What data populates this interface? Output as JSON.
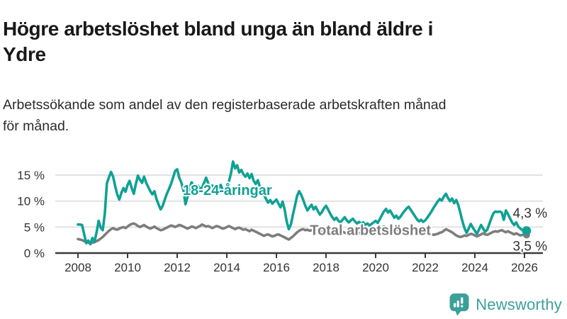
{
  "header": {
    "title_line1": "Högre arbetslöshet bland unga än bland äldre i",
    "title_line2": "Ydre",
    "subtitle_line1": "Arbetssökande som andel av den registerbaserade arbetskraften månad",
    "subtitle_line2": "för månad."
  },
  "footer": {
    "brand": "Newsworthy"
  },
  "colors": {
    "youth": "#10a195",
    "total": "#7d7d7d",
    "axis": "#3a3a3a",
    "grid": "#d8d8d8",
    "tick_label": "#333333",
    "end_label": "#333333",
    "brand": "#3d9f9a",
    "background": "#ffffff"
  },
  "chart_data": {
    "type": "line",
    "title": "Högre arbetslöshet bland unga än bland äldre i Ydre",
    "subtitle": "Arbetssökande som andel av den registerbaserade arbetskraften månad för månad.",
    "x_start": "2008-01",
    "x_end": "2026-02",
    "points_per_year": 12,
    "xticks": [
      2008,
      2010,
      2012,
      2014,
      2016,
      2018,
      2020,
      2022,
      2024,
      2026
    ],
    "ytick_values": [
      0,
      5,
      10,
      15
    ],
    "ytick_labels": [
      "0 %",
      "5 %",
      "10 %",
      "15 %"
    ],
    "ylim": [
      0,
      18.5
    ],
    "grid": "horizontal",
    "legend_position": "inline-labels",
    "series": [
      {
        "name": "18-24-åringar",
        "color": "#10a195",
        "end_label": "4,3 %",
        "end_value": 4.3,
        "values": [
          5.5,
          5.5,
          5.4,
          3.6,
          1.9,
          2.4,
          1.7,
          2.9,
          2.2,
          4.0,
          6.2,
          4.9,
          4.4,
          7.6,
          13.4,
          14.6,
          15.6,
          14.7,
          12.9,
          11.3,
          10.3,
          11.6,
          12.5,
          11.8,
          13.1,
          13.9,
          12.5,
          11.4,
          13.3,
          14.9,
          14.1,
          13.5,
          14.7,
          13.5,
          12.7,
          11.9,
          11.3,
          11.9,
          10.4,
          9.3,
          8.4,
          9.1,
          10.3,
          11.4,
          12.3,
          13.3,
          14.5,
          15.8,
          16.1,
          14.5,
          13.6,
          12.1,
          9.4,
          10.8,
          12.6,
          13.6,
          12.9,
          12.2,
          13.0,
          12.3,
          12.6,
          13.5,
          14.5,
          13.4,
          12.3,
          13.0,
          12.1,
          11.5,
          12.4,
          13.1,
          12.2,
          11.6,
          12.4,
          13.7,
          15.3,
          17.6,
          16.3,
          16.9,
          15.5,
          16.0,
          15.2,
          14.7,
          15.3,
          14.4,
          15.2,
          13.9,
          13.3,
          14.0,
          12.7,
          11.9,
          11.2,
          10.4,
          9.7,
          10.2,
          9.5,
          9.9,
          10.3,
          9.5,
          8.8,
          9.9,
          8.3,
          6.0,
          4.6,
          5.5,
          7.4,
          9.2,
          11.0,
          11.9,
          11.2,
          10.2,
          9.1,
          8.2,
          8.8,
          9.3,
          8.4,
          8.9,
          8.1,
          7.4,
          7.9,
          8.6,
          9.1,
          8.4,
          7.6,
          6.9,
          6.4,
          6.8,
          6.2,
          5.9,
          6.4,
          6.9,
          6.3,
          5.9,
          6.3,
          6.6,
          6.1,
          5.7,
          6.0,
          5.6,
          5.9,
          5.4,
          5.7,
          5.3,
          5.6,
          5.9,
          6.2,
          5.8,
          6.5,
          7.3,
          8.0,
          8.5,
          7.8,
          8.2,
          7.5,
          6.8,
          7.2,
          6.6,
          7.0,
          7.6,
          8.1,
          8.6,
          8.9,
          8.3,
          7.7,
          7.1,
          6.5,
          6.1,
          6.4,
          6.0,
          6.3,
          6.8,
          7.4,
          8.0,
          8.7,
          9.3,
          9.9,
          10.4,
          10.1,
          10.9,
          11.4,
          10.6,
          10.0,
          10.5,
          9.6,
          10.2,
          9.2,
          7.7,
          6.1,
          4.8,
          3.9,
          4.7,
          5.6,
          4.9,
          4.3,
          3.7,
          4.5,
          5.4,
          4.7,
          4.1,
          4.5,
          5.6,
          6.7,
          7.7,
          8.0,
          7.9,
          8.0,
          7.8,
          6.4,
          8.2,
          7.5,
          6.7,
          5.9,
          5.4,
          5.9,
          5.1,
          4.7,
          4.4,
          4.6,
          4.3
        ]
      },
      {
        "name": "Total arbetslöshet",
        "color": "#7d7d7d",
        "end_label": "3,5 %",
        "end_value": 3.5,
        "values": [
          2.7,
          2.6,
          2.5,
          2.3,
          2.1,
          2.0,
          1.9,
          2.0,
          2.1,
          2.3,
          2.5,
          2.8,
          3.1,
          3.5,
          3.9,
          4.3,
          4.6,
          4.8,
          4.6,
          4.5,
          4.7,
          4.9,
          5.0,
          4.8,
          5.1,
          5.4,
          5.6,
          5.7,
          5.5,
          5.2,
          5.0,
          5.2,
          5.4,
          5.1,
          4.9,
          4.7,
          4.9,
          5.1,
          4.8,
          4.6,
          4.4,
          4.5,
          4.7,
          4.9,
          5.1,
          5.3,
          5.2,
          5.0,
          5.2,
          5.4,
          5.3,
          5.1,
          4.9,
          4.7,
          4.9,
          5.1,
          5.0,
          4.8,
          5.0,
          5.2,
          5.5,
          5.3,
          5.1,
          5.2,
          5.0,
          4.8,
          5.0,
          5.2,
          5.1,
          4.9,
          4.7,
          4.8,
          5.0,
          5.2,
          5.0,
          4.8,
          4.6,
          4.8,
          4.9,
          4.7,
          4.5,
          4.6,
          4.4,
          4.2,
          4.5,
          4.3,
          4.1,
          3.9,
          3.7,
          3.5,
          3.3,
          3.5,
          3.6,
          3.4,
          3.2,
          3.3,
          3.5,
          3.6,
          3.4,
          3.2,
          3.0,
          2.8,
          2.6,
          2.9,
          3.2,
          3.6,
          4.0,
          4.3,
          4.5,
          4.6,
          4.4,
          4.5,
          4.3,
          4.4,
          4.2,
          4.3,
          4.5,
          4.4,
          4.2,
          4.1,
          4.3,
          4.4,
          4.2,
          4.0,
          4.1,
          3.9,
          3.8,
          4.0,
          4.1,
          3.9,
          3.8,
          3.9,
          4.0,
          4.1,
          3.9,
          3.8,
          3.9,
          3.7,
          3.8,
          3.9,
          3.8,
          3.7,
          3.8,
          3.9,
          4.0,
          4.2,
          4.5,
          4.9,
          5.1,
          5.0,
          4.9,
          4.8,
          4.7,
          4.6,
          4.5,
          4.4,
          4.6,
          4.5,
          4.3,
          4.2,
          4.0,
          3.9,
          3.8,
          3.7,
          3.6,
          3.7,
          3.8,
          3.7,
          3.8,
          3.9,
          3.7,
          3.6,
          3.5,
          3.6,
          3.7,
          3.9,
          4.0,
          4.3,
          4.6,
          4.4,
          4.2,
          4.0,
          3.7,
          3.4,
          3.2,
          3.1,
          3.2,
          3.4,
          3.3,
          3.5,
          3.7,
          3.6,
          3.4,
          3.2,
          3.4,
          3.6,
          3.8,
          3.6,
          3.5,
          3.7,
          3.9,
          4.1,
          4.2,
          4.1,
          4.3,
          4.4,
          4.2,
          4.0,
          4.2,
          4.0,
          3.8,
          3.6,
          3.8,
          3.6,
          3.4,
          3.5,
          3.6,
          3.5
        ]
      }
    ],
    "annotations": [
      {
        "text": "18-24-åringar",
        "year": 2012.23,
        "value": 11.2,
        "role": "series-label",
        "color": "#10a195"
      },
      {
        "text": "Total arbetslöshet",
        "year": 2017.35,
        "value": 3.5,
        "role": "series-label",
        "color": "#7d7d7d"
      },
      {
        "text": "4,3 %",
        "year": 2025.53,
        "value": 6.8,
        "role": "end-value",
        "color": "#333333"
      },
      {
        "text": "3,5 %",
        "year": 2025.53,
        "value": 0.45,
        "role": "end-value",
        "color": "#333333"
      }
    ]
  }
}
